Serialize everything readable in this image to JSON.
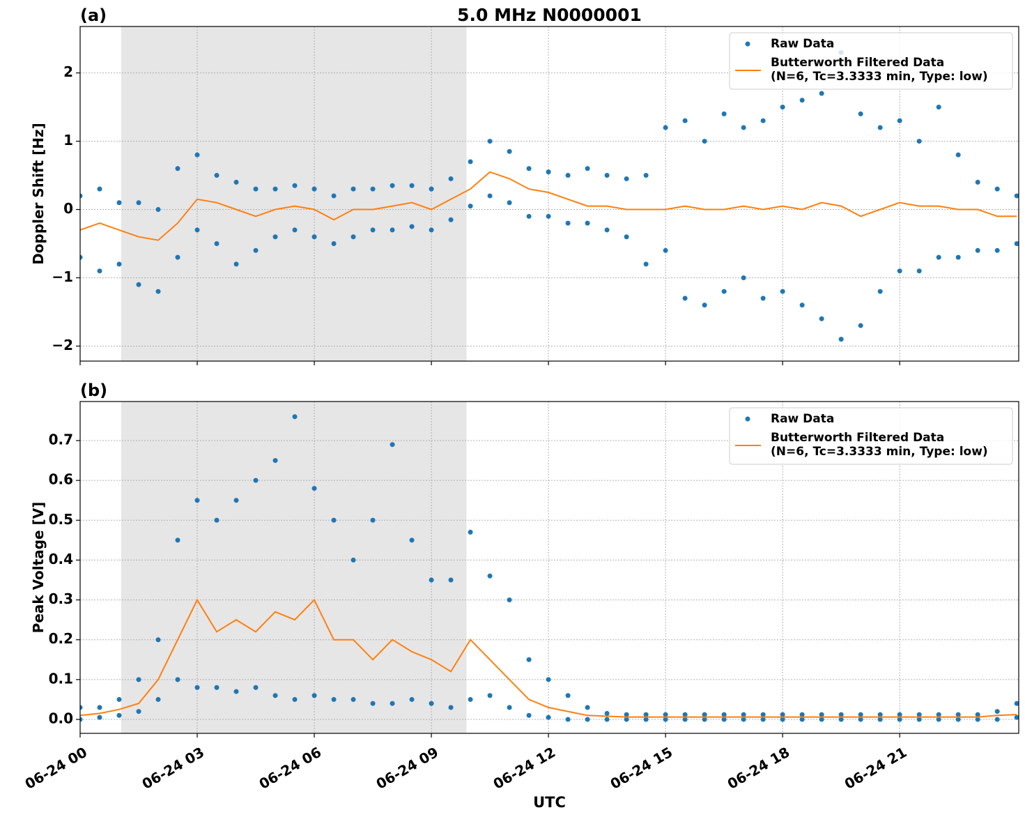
{
  "chart_data": [
    {
      "type": "scatter-line",
      "panel_label": "(a)",
      "title": "5.0 MHz N0000001",
      "ylabel": "Doppler Shift [Hz]",
      "xlim": [
        0,
        24.05
      ],
      "xticks": [
        0,
        3,
        6,
        9,
        12,
        15,
        18,
        21
      ],
      "ylim": [
        -2.22,
        2.68
      ],
      "yticks": [
        {
          "value": -2,
          "label": "−2"
        },
        {
          "value": -1,
          "label": "−1"
        },
        0,
        1,
        2
      ],
      "grid": true,
      "legend": "upper right",
      "shaded_span": [
        1.05,
        9.9
      ],
      "series": [
        {
          "name": "Raw Data",
          "color": "#1f77b4",
          "marker": "dot",
          "x": [
            0,
            0,
            0.5,
            0.5,
            1,
            1,
            1.5,
            1.5,
            2,
            2,
            2.5,
            2.5,
            3,
            3,
            3.5,
            3.5,
            4,
            4,
            4.5,
            4.5,
            5,
            5,
            5.5,
            5.5,
            6,
            6,
            6.5,
            6.5,
            7,
            7,
            7.5,
            7.5,
            8,
            8,
            8.5,
            8.5,
            9,
            9,
            9.5,
            9.5,
            10,
            10,
            10.5,
            10.5,
            11,
            11,
            11.5,
            11.5,
            12,
            12,
            12.5,
            12.5,
            13,
            13,
            13.5,
            13.5,
            14,
            14,
            14.5,
            14.5,
            15,
            15,
            15.5,
            15.5,
            16,
            16,
            16.5,
            16.5,
            17,
            17,
            17.5,
            17.5,
            18,
            18,
            18.5,
            18.5,
            19,
            19,
            19.5,
            19.5,
            20,
            20,
            20.5,
            20.5,
            21,
            21,
            21.5,
            21.5,
            22,
            22,
            22.5,
            22.5,
            23,
            23,
            23.5,
            23.5,
            24,
            24
          ],
          "values": [
            0.2,
            -0.7,
            0.3,
            -0.9,
            0.1,
            -0.8,
            0.1,
            -1.1,
            0.0,
            -1.2,
            0.6,
            -0.7,
            0.8,
            -0.3,
            0.5,
            -0.5,
            0.4,
            -0.8,
            0.3,
            -0.6,
            0.3,
            -0.4,
            0.35,
            -0.3,
            0.3,
            -0.4,
            0.2,
            -0.5,
            0.3,
            -0.4,
            0.3,
            -0.3,
            0.35,
            -0.3,
            0.35,
            -0.25,
            0.3,
            -0.3,
            0.45,
            -0.15,
            0.7,
            0.05,
            1.0,
            0.2,
            0.85,
            0.1,
            0.6,
            -0.1,
            0.55,
            -0.1,
            0.5,
            -0.2,
            0.6,
            -0.2,
            0.5,
            -0.3,
            0.45,
            -0.4,
            0.5,
            -0.8,
            1.2,
            -0.6,
            1.3,
            -1.3,
            1.0,
            -1.4,
            1.4,
            -1.2,
            1.2,
            -1.0,
            1.3,
            -1.3,
            1.5,
            -1.2,
            1.6,
            -1.4,
            1.7,
            -1.6,
            2.3,
            -1.9,
            1.4,
            -1.7,
            1.2,
            -1.2,
            1.3,
            -0.9,
            1.0,
            -0.9,
            1.5,
            -0.7,
            0.8,
            -0.7,
            0.4,
            -0.6,
            0.3,
            -0.6,
            0.2,
            -0.5
          ]
        },
        {
          "name": "Butterworth Filtered Data",
          "name_detail": "(N=6, Tc=3.3333 min, Type: low)",
          "color": "#ff7f0e",
          "marker": "line",
          "x": [
            0,
            0.5,
            1,
            1.5,
            2,
            2.5,
            3,
            3.5,
            4,
            4.5,
            5,
            5.5,
            6,
            6.5,
            7,
            7.5,
            8,
            8.5,
            9,
            9.5,
            10,
            10.5,
            11,
            11.5,
            12,
            12.5,
            13,
            13.5,
            14,
            14.5,
            15,
            15.5,
            16,
            16.5,
            17,
            17.5,
            18,
            18.5,
            19,
            19.5,
            20,
            20.5,
            21,
            21.5,
            22,
            22.5,
            23,
            23.5,
            24
          ],
          "values": [
            -0.3,
            -0.2,
            -0.3,
            -0.4,
            -0.45,
            -0.2,
            0.15,
            0.1,
            0.0,
            -0.1,
            0.0,
            0.05,
            0.0,
            -0.15,
            0.0,
            0.0,
            0.05,
            0.1,
            0.0,
            0.15,
            0.3,
            0.55,
            0.45,
            0.3,
            0.25,
            0.15,
            0.05,
            0.05,
            0.0,
            0.0,
            0.0,
            0.05,
            0.0,
            0.0,
            0.05,
            0.0,
            0.05,
            0.0,
            0.1,
            0.05,
            -0.1,
            0.0,
            0.1,
            0.05,
            0.05,
            0.0,
            0.0,
            -0.1,
            -0.1
          ]
        }
      ]
    },
    {
      "type": "scatter-line",
      "panel_label": "(b)",
      "ylabel": "Peak Voltage [V]",
      "xlabel": "UTC",
      "xlim": [
        0,
        24.05
      ],
      "xticks": [
        {
          "value": 0,
          "label": "06-24 00"
        },
        {
          "value": 3,
          "label": "06-24 03"
        },
        {
          "value": 6,
          "label": "06-24 06"
        },
        {
          "value": 9,
          "label": "06-24 09"
        },
        {
          "value": 12,
          "label": "06-24 12"
        },
        {
          "value": 15,
          "label": "06-24 15"
        },
        {
          "value": 18,
          "label": "06-24 18"
        },
        {
          "value": 21,
          "label": "06-24 21"
        }
      ],
      "ylim": [
        -0.035,
        0.798
      ],
      "yticks": [
        {
          "value": 0,
          "label": "0.0"
        },
        0.1,
        0.2,
        0.3,
        0.4,
        0.5,
        0.6,
        0.7
      ],
      "grid": true,
      "legend": "upper right",
      "shaded_span": [
        1.05,
        9.9
      ],
      "series": [
        {
          "name": "Raw Data",
          "color": "#1f77b4",
          "marker": "dot",
          "x": [
            0,
            0,
            0.5,
            0.5,
            1,
            1,
            1.5,
            1.5,
            2,
            2,
            2.5,
            2.5,
            3,
            3,
            3.5,
            3.5,
            4,
            4,
            4.5,
            4.5,
            5,
            5,
            5.5,
            5.5,
            6,
            6,
            6.5,
            6.5,
            7,
            7,
            7.5,
            7.5,
            8,
            8,
            8.5,
            8.5,
            9,
            9,
            9.5,
            9.5,
            10,
            10,
            10.5,
            10.5,
            11,
            11,
            11.5,
            11.5,
            12,
            12,
            12.5,
            12.5,
            13,
            13,
            13.5,
            13.5,
            14,
            14,
            14.5,
            14.5,
            15,
            15,
            15.5,
            15.5,
            16,
            16,
            16.5,
            16.5,
            17,
            17,
            17.5,
            17.5,
            18,
            18,
            18.5,
            18.5,
            19,
            19,
            19.5,
            19.5,
            20,
            20,
            20.5,
            20.5,
            21,
            21,
            21.5,
            21.5,
            22,
            22,
            22.5,
            22.5,
            23,
            23,
            23.5,
            23.5,
            24,
            24
          ],
          "values": [
            0.03,
            0.0,
            0.03,
            0.005,
            0.05,
            0.01,
            0.1,
            0.02,
            0.2,
            0.05,
            0.45,
            0.1,
            0.55,
            0.08,
            0.5,
            0.08,
            0.55,
            0.07,
            0.6,
            0.08,
            0.65,
            0.06,
            0.76,
            0.05,
            0.58,
            0.06,
            0.5,
            0.05,
            0.4,
            0.05,
            0.5,
            0.04,
            0.69,
            0.04,
            0.45,
            0.05,
            0.35,
            0.04,
            0.35,
            0.03,
            0.47,
            0.05,
            0.36,
            0.06,
            0.3,
            0.03,
            0.15,
            0.01,
            0.1,
            0.005,
            0.06,
            0.0,
            0.03,
            0.0,
            0.015,
            0.0,
            0.012,
            0.0,
            0.012,
            0.0,
            0.012,
            0.0,
            0.012,
            0.0,
            0.012,
            0.0,
            0.012,
            0.0,
            0.012,
            0.0,
            0.012,
            0.0,
            0.012,
            0.0,
            0.012,
            0.0,
            0.012,
            0.0,
            0.012,
            0.0,
            0.012,
            0.0,
            0.012,
            0.0,
            0.012,
            0.0,
            0.012,
            0.0,
            0.012,
            0.0,
            0.012,
            0.0,
            0.012,
            0.0,
            0.02,
            0.0,
            0.04,
            0.005
          ]
        },
        {
          "name": "Butterworth Filtered Data",
          "name_detail": "(N=6, Tc=3.3333 min, Type: low)",
          "color": "#ff7f0e",
          "marker": "line",
          "x": [
            0,
            0.5,
            1,
            1.5,
            2,
            2.5,
            3,
            3.5,
            4,
            4.5,
            5,
            5.5,
            6,
            6.5,
            7,
            7.5,
            8,
            8.5,
            9,
            9.5,
            10,
            10.5,
            11,
            11.5,
            12,
            12.5,
            13,
            13.5,
            14,
            14.5,
            15,
            15.5,
            16,
            16.5,
            17,
            17.5,
            18,
            18.5,
            19,
            19.5,
            20,
            20.5,
            21,
            21.5,
            22,
            22.5,
            23,
            23.5,
            24
          ],
          "values": [
            0.01,
            0.015,
            0.025,
            0.04,
            0.1,
            0.2,
            0.3,
            0.22,
            0.25,
            0.22,
            0.27,
            0.25,
            0.3,
            0.2,
            0.2,
            0.15,
            0.2,
            0.17,
            0.15,
            0.12,
            0.2,
            0.15,
            0.1,
            0.05,
            0.03,
            0.02,
            0.01,
            0.008,
            0.006,
            0.006,
            0.006,
            0.006,
            0.006,
            0.006,
            0.006,
            0.006,
            0.006,
            0.006,
            0.006,
            0.006,
            0.006,
            0.006,
            0.006,
            0.006,
            0.006,
            0.006,
            0.006,
            0.01,
            0.012
          ]
        }
      ]
    }
  ]
}
